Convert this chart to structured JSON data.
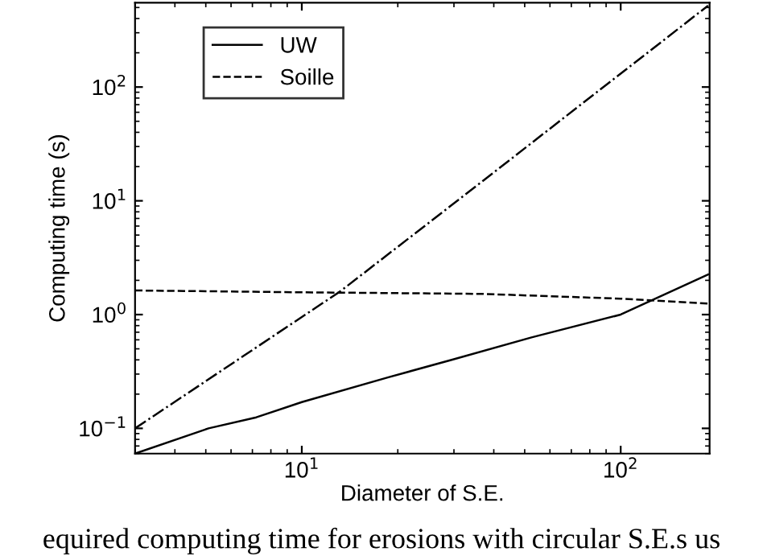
{
  "chart_data": {
    "type": "line",
    "xlabel": "Diameter of S.E.",
    "ylabel": "Computing time (s)",
    "log": "xy",
    "xlim": [
      3,
      190
    ],
    "ylim": [
      0.06,
      550
    ],
    "xticks": [
      {
        "value": 10,
        "label": "10$^{1}$"
      },
      {
        "value": 100,
        "label": "10$^{2}$"
      }
    ],
    "yticks": [
      {
        "value": 0.1,
        "label": "10$^{−1}$"
      },
      {
        "value": 1,
        "label": "10$^{0}$"
      },
      {
        "value": 10,
        "label": "10$^{1}$"
      },
      {
        "value": 100,
        "label": "10$^{2}$"
      }
    ],
    "legend": "top left",
    "grid": false,
    "marker": "none",
    "series": [
      {
        "name": "UW",
        "color": "#000000",
        "line_style": "solid",
        "x": [
          3,
          5.1,
          7.2,
          10,
          18.6,
          29.5,
          52.5,
          100,
          188
        ],
        "values": [
          0.06,
          0.1,
          0.125,
          0.17,
          0.28,
          0.4,
          0.63,
          1.0,
          2.25
        ]
      },
      {
        "name": "Soille",
        "color": "#000000",
        "line_style": "dashed",
        "x": [
          3,
          10,
          37,
          100,
          188
        ],
        "values": [
          1.63,
          1.57,
          1.52,
          1.38,
          1.25
        ]
      },
      {
        "color": "#000000",
        "line_style": "dashdot",
        "x": [
          3,
          13.2,
          37,
          188
        ],
        "values": [
          0.1,
          1.6,
          15,
          520
        ]
      }
    ],
    "annotations": [
      "equired computing time for erosions with circular S.E.s us"
    ]
  }
}
